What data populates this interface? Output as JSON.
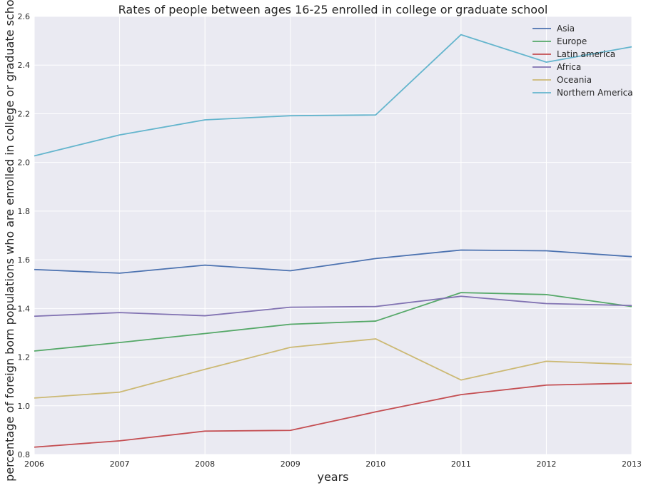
{
  "chart_data": {
    "type": "line",
    "title": "Rates of people between ages 16-25 enrolled in college or graduate school",
    "xlabel": "years",
    "ylabel": "percentage of foreign born populations who are enrolled in college or graduate school",
    "x": [
      2006,
      2007,
      2008,
      2009,
      2010,
      2011,
      2012,
      2013
    ],
    "xlim": [
      2006,
      2013
    ],
    "ylim": [
      0.8,
      2.6
    ],
    "xticks": [
      "2006",
      "2007",
      "2008",
      "2009",
      "2010",
      "2011",
      "2012",
      "2013"
    ],
    "yticks": [
      "0.8",
      "1.0",
      "1.2",
      "1.4",
      "1.6",
      "1.8",
      "2.0",
      "2.2",
      "2.4",
      "2.6"
    ],
    "grid": true,
    "legend_position": "top-right",
    "series": [
      {
        "name": "Asia",
        "color": "#4c72b0",
        "values": [
          1.56,
          1.545,
          1.578,
          1.555,
          1.605,
          1.64,
          1.637,
          1.613
        ]
      },
      {
        "name": "Europe",
        "color": "#55a868",
        "values": [
          1.225,
          1.26,
          1.297,
          1.335,
          1.348,
          1.465,
          1.457,
          1.408
        ]
      },
      {
        "name": "Latin america",
        "color": "#c44e52",
        "values": [
          0.83,
          0.856,
          0.896,
          0.899,
          0.975,
          1.046,
          1.085,
          1.093
        ]
      },
      {
        "name": "Africa",
        "color": "#8172b2",
        "values": [
          1.368,
          1.383,
          1.37,
          1.405,
          1.408,
          1.45,
          1.42,
          1.412
        ]
      },
      {
        "name": "Oceania",
        "color": "#ccb974",
        "values": [
          1.032,
          1.056,
          1.15,
          1.24,
          1.275,
          1.106,
          1.183,
          1.17
        ]
      },
      {
        "name": "Northern America",
        "color": "#64b5cd",
        "values": [
          2.027,
          2.113,
          2.175,
          2.192,
          2.195,
          2.525,
          2.412,
          2.475
        ]
      }
    ]
  }
}
